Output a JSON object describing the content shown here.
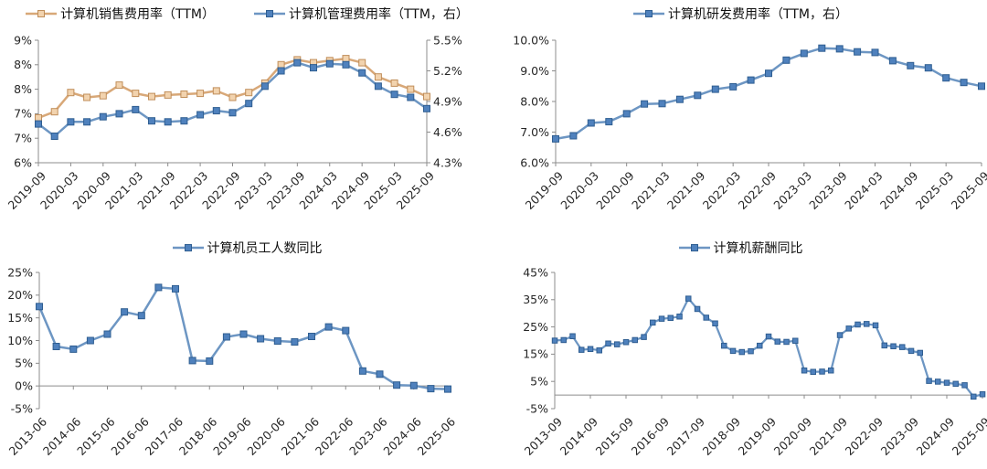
{
  "page": {
    "background": "#ffffff"
  },
  "colors": {
    "axis": "#8C8C8C",
    "tick_text": "#262626",
    "legend_text": "#111111",
    "tan": {
      "line": "#D8A878",
      "fill": "#F2D3AE",
      "edge": "#C08E5A"
    },
    "blue": {
      "line": "#6D96C3",
      "fill": "#4F81BD",
      "edge": "#2F5E91"
    }
  },
  "chart_data": [
    {
      "id": "sales-admin",
      "type": "line",
      "legend": [
        {
          "label": "计算机销售费用率（TTM）",
          "color": "tan"
        },
        {
          "label": "计算机管理费用率（TTM，右）",
          "color": "blue"
        }
      ],
      "x_labels": [
        "2019-09",
        "2020-03",
        "2020-09",
        "2021-03",
        "2021-09",
        "2022-03",
        "2022-09",
        "2023-03",
        "2023-09",
        "2024-03",
        "2024-09",
        "2025-03",
        "2025-09"
      ],
      "x_label_every": 2,
      "left_axis": {
        "ylim": [
          6,
          9
        ],
        "ticks": [
          9,
          8.4,
          7.8,
          7.2,
          6.6,
          6
        ],
        "tick_labels": [
          "9%",
          "8%",
          "8%",
          "7%",
          "7%",
          "6%"
        ]
      },
      "right_axis": {
        "ylim": [
          4.3,
          5.5
        ],
        "ticks": [
          5.5,
          5.2,
          4.9,
          4.6,
          4.3
        ],
        "tick_labels": [
          "5.5%",
          "5.2%",
          "4.9%",
          "4.6%",
          "4.3%"
        ]
      },
      "series": [
        {
          "name": "计算机销售费用率（TTM）",
          "axis": "left",
          "color": "tan",
          "values": [
            7.1,
            7.25,
            7.72,
            7.6,
            7.64,
            7.9,
            7.7,
            7.62,
            7.66,
            7.68,
            7.7,
            7.76,
            7.6,
            7.72,
            7.95,
            8.4,
            8.52,
            8.45,
            8.5,
            8.55,
            8.45,
            8.1,
            7.95,
            7.8,
            7.62
          ]
        },
        {
          "name": "计算机管理费用率（TTM，右）",
          "axis": "right",
          "color": "blue",
          "values": [
            4.68,
            4.56,
            4.7,
            4.7,
            4.75,
            4.78,
            4.82,
            4.71,
            4.7,
            4.71,
            4.77,
            4.81,
            4.79,
            4.88,
            5.05,
            5.2,
            5.28,
            5.23,
            5.27,
            5.26,
            5.18,
            5.05,
            4.97,
            4.94,
            4.83
          ]
        }
      ]
    },
    {
      "id": "rnd",
      "type": "line",
      "legend": [
        {
          "label": "计算机研发费用率（TTM，右）",
          "color": "blue"
        }
      ],
      "x_labels": [
        "2019-09",
        "2020-03",
        "2020-09",
        "2021-03",
        "2021-09",
        "2022-03",
        "2022-09",
        "2023-03",
        "2023-09",
        "2024-03",
        "2024-09",
        "2025-03",
        "2025-09"
      ],
      "x_label_every": 2,
      "left_axis": {
        "ylim": [
          6,
          10
        ],
        "ticks": [
          10,
          9,
          8,
          7,
          6
        ],
        "tick_labels": [
          "10.0%",
          "9.0%",
          "8.0%",
          "7.0%",
          "6.0%"
        ]
      },
      "series": [
        {
          "name": "计算机研发费用率（TTM，右）",
          "axis": "left",
          "color": "blue",
          "values": [
            6.78,
            6.88,
            7.3,
            7.34,
            7.6,
            7.92,
            7.93,
            8.07,
            8.2,
            8.4,
            8.48,
            8.7,
            8.92,
            9.35,
            9.57,
            9.74,
            9.72,
            9.62,
            9.6,
            9.33,
            9.17,
            9.1,
            8.77,
            8.62,
            8.5
          ]
        }
      ]
    },
    {
      "id": "employees",
      "type": "line",
      "legend": [
        {
          "label": "计算机员工人数同比",
          "color": "blue"
        }
      ],
      "x_labels": [
        "2013-06",
        "2014-06",
        "2015-06",
        "2016-06",
        "2017-06",
        "2018-06",
        "2019-06",
        "2020-06",
        "2021-06",
        "2022-06",
        "2023-06",
        "2024-06",
        "2025-06"
      ],
      "x_label_every": 2,
      "x_cross": 0,
      "left_axis": {
        "ylim": [
          -5,
          25
        ],
        "ticks": [
          25,
          20,
          15,
          10,
          5,
          0,
          -5
        ],
        "tick_labels": [
          "25%",
          "20%",
          "15%",
          "10%",
          "5%",
          "0%",
          "-5%"
        ]
      },
      "series": [
        {
          "name": "计算机员工人数同比",
          "axis": "left",
          "color": "blue",
          "values": [
            17.5,
            8.7,
            8.1,
            10.0,
            11.4,
            16.3,
            15.5,
            21.7,
            21.4,
            5.6,
            5.5,
            10.8,
            11.4,
            10.4,
            9.9,
            9.7,
            10.9,
            13.0,
            12.2,
            3.3,
            2.6,
            0.2,
            0.1,
            -0.6,
            -0.7
          ]
        }
      ]
    },
    {
      "id": "salary",
      "type": "line",
      "legend": [
        {
          "label": "计算机薪酬同比",
          "color": "blue"
        }
      ],
      "x_labels": [
        "2013-09",
        "2014-09",
        "2015-09",
        "2016-09",
        "2017-09",
        "2018-09",
        "2019-09",
        "2020-09",
        "2021-09",
        "2022-09",
        "2023-09",
        "2024-09",
        "2025-09"
      ],
      "x_label_every": 4,
      "x_cross": 0,
      "left_axis": {
        "ylim": [
          -5,
          45
        ],
        "ticks": [
          45,
          35,
          25,
          15,
          5,
          -5
        ],
        "tick_labels": [
          "45%",
          "35%",
          "25%",
          "15%",
          "5%",
          "-5%"
        ]
      },
      "series": [
        {
          "name": "计算机薪酬同比",
          "axis": "left",
          "color": "blue",
          "values": [
            20.0,
            20.2,
            21.6,
            16.6,
            16.9,
            16.4,
            18.9,
            18.6,
            19.4,
            20.2,
            21.3,
            26.6,
            28.0,
            28.3,
            28.8,
            35.4,
            31.6,
            28.4,
            26.3,
            18.1,
            16.2,
            15.8,
            16.1,
            18.1,
            21.5,
            19.6,
            19.5,
            19.9,
            9.0,
            8.5,
            8.6,
            9.0,
            22.0,
            24.4,
            25.9,
            26.1,
            25.6,
            18.2,
            17.9,
            17.6,
            16.2,
            15.5,
            5.2,
            4.9,
            4.5,
            4.1,
            3.6,
            -0.6,
            0.3
          ]
        }
      ]
    }
  ]
}
